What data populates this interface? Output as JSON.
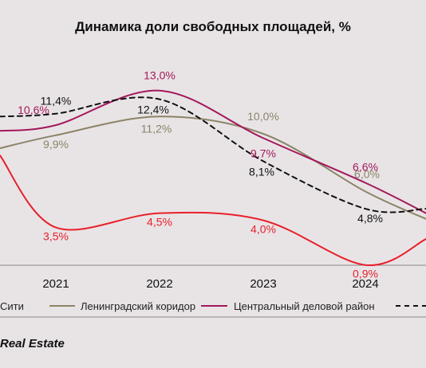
{
  "chart_data": {
    "type": "line",
    "title": "Динамика доли свободных площадей, %",
    "categories": [
      "2021",
      "2022",
      "2023",
      "2024"
    ],
    "series": [
      {
        "name": "Сити",
        "color": "#e8202a",
        "values": [
          3.5,
          4.5,
          4.0,
          0.9
        ],
        "labels": [
          "3,5%",
          "4,5%",
          "4,0%",
          "0,9%"
        ]
      },
      {
        "name": "Ленинградский коридор",
        "color": "#8c8466",
        "values": [
          9.9,
          11.2,
          10.0,
          6.0
        ],
        "labels": [
          "9,9%",
          "11,2%",
          "10,0%",
          "6,0%"
        ]
      },
      {
        "name": "Центральный деловой район",
        "color": "#a3185a",
        "values": [
          10.6,
          13.0,
          9.7,
          6.6
        ],
        "labels": [
          "10,6%",
          "13,0%",
          "9,7%",
          "6,6%"
        ]
      },
      {
        "name": "",
        "color": "#111111",
        "dashed": true,
        "values": [
          11.4,
          12.4,
          8.1,
          4.8
        ],
        "labels": [
          "11,4%",
          "12,4%",
          "8,1%",
          "4,8%"
        ]
      }
    ],
    "legend_position": "bottom",
    "grid": false
  },
  "footer": {
    "source": "Real Estate"
  }
}
